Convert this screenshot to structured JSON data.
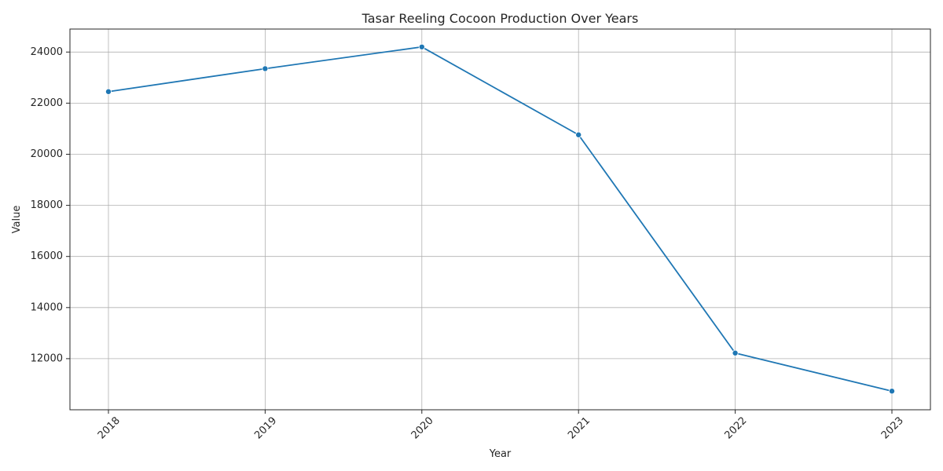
{
  "chart_data": {
    "type": "line",
    "title": "Tasar Reeling Cocoon Production Over Years",
    "xlabel": "Year",
    "ylabel": "Value",
    "categories": [
      "2018",
      "2019",
      "2020",
      "2021",
      "2022",
      "2023"
    ],
    "values": [
      22450,
      23350,
      24200,
      20760,
      12220,
      10730
    ],
    "yticks": [
      12000,
      14000,
      16000,
      18000,
      20000,
      22000,
      24000
    ],
    "ylim": [
      10000,
      24900
    ],
    "grid": true,
    "x_tick_rotation_deg": 45,
    "marker": "circle",
    "color": "#1f77b4"
  }
}
